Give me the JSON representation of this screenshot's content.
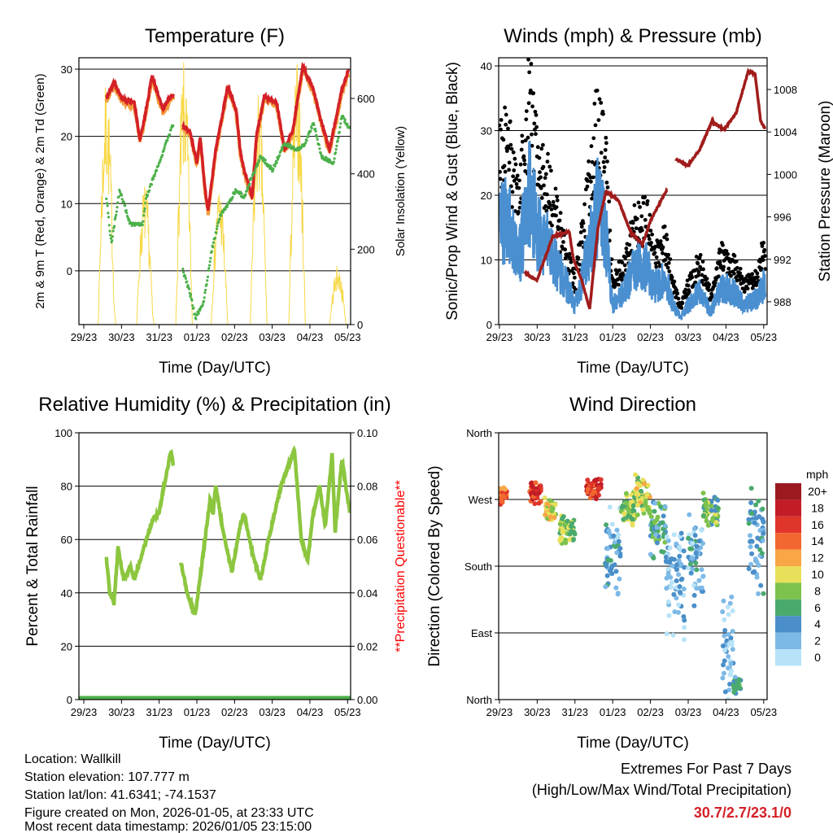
{
  "colors": {
    "temp_2m": "#d42027",
    "temp_9m": "#f39c3c",
    "dewpoint": "#4cb04a",
    "solar": "#f7d848",
    "gust": "#000000",
    "wind": "#4a8fd0",
    "pressure": "#a01c1c",
    "rh": "#8cc63f",
    "precip": "#4cb04a",
    "extremes": "#d42027",
    "questionable": "#ff0000"
  },
  "x_tick_labels": [
    "29/23",
    "30/23",
    "31/23",
    "01/23",
    "02/23",
    "03/23",
    "04/23",
    "05/23"
  ],
  "footer": {
    "location": "Location: Wallkill",
    "elevation": "Station elevation: 107.777 m",
    "latlon": "Station lat/lon: 41.6341; -74.1537",
    "created": "Figure created on Mon, 2026-01-05, at 23:33 UTC",
    "recent": "Most recent data timestamp: 2026/01/05 23:15:00",
    "extremes_title": "Extremes For Past 7 Days",
    "extremes_sub": "(High/Low/Max Wind/Total Precipitation)",
    "extremes_value": "30.7/2.7/23.1/0"
  },
  "chart_data": [
    {
      "type": "line",
      "title": "Temperature (F)",
      "xlabel": "Time (Day/UTC)",
      "ylabel": "2m & 9m T (Red, Orange) & 2m Td (Green)",
      "y2label": "Solar Insolation (Yellow)",
      "xlim": [
        -0.13,
        7.08
      ],
      "ylim": [
        -8,
        31.7
      ],
      "y2lim": [
        0,
        708
      ],
      "yticks": [
        0,
        10,
        20,
        30
      ],
      "y2ticks": [
        0,
        200,
        400,
        600
      ],
      "series": [
        {
          "name": "2m T",
          "segments": [
            [
              [
                0.6,
                25.7
              ],
              [
                0.8,
                28
              ],
              [
                1.02,
                25.5
              ],
              [
                1.34,
                25
              ],
              [
                1.49,
                19.5
              ],
              [
                1.62,
                23
              ],
              [
                1.81,
                29
              ],
              [
                2.1,
                24
              ],
              [
                2.25,
                25.5
              ],
              [
                2.38,
                26
              ]
            ],
            [
              [
                2.63,
                21.5
              ],
              [
                2.81,
                21
              ],
              [
                3.0,
                16
              ],
              [
                3.09,
                20
              ],
              [
                3.22,
                12
              ],
              [
                3.3,
                9
              ],
              [
                3.5,
                18
              ],
              [
                3.82,
                27.5
              ],
              [
                4.04,
                24
              ],
              [
                4.15,
                18
              ],
              [
                4.25,
                15
              ],
              [
                4.47,
                11
              ],
              [
                4.58,
                20
              ],
              [
                4.79,
                26
              ],
              [
                5.12,
                25
              ],
              [
                5.33,
                18
              ],
              [
                5.55,
                21
              ],
              [
                5.81,
                30.5
              ],
              [
                6.09,
                27
              ],
              [
                6.31,
                22
              ],
              [
                6.52,
                18
              ],
              [
                6.85,
                27
              ],
              [
                7.02,
                29.7
              ]
            ]
          ]
        },
        {
          "name": "2m Td",
          "segments": [
            [
              [
                0.6,
                11
              ],
              [
                0.73,
                4
              ],
              [
                0.95,
                12
              ],
              [
                1.23,
                7
              ],
              [
                1.56,
                7
              ],
              [
                1.66,
                11
              ],
              [
                1.99,
                16
              ],
              [
                2.31,
                21
              ],
              [
                2.38,
                22
              ]
            ],
            [
              [
                2.63,
                0
              ],
              [
                2.85,
                -4
              ],
              [
                2.96,
                -7
              ],
              [
                3.17,
                -5
              ],
              [
                3.39,
                3
              ],
              [
                3.61,
                8
              ],
              [
                4.04,
                12
              ],
              [
                4.25,
                11
              ],
              [
                4.69,
                17
              ],
              [
                5.01,
                15
              ],
              [
                5.33,
                19
              ],
              [
                5.66,
                18
              ],
              [
                5.88,
                19
              ],
              [
                6.09,
                22
              ],
              [
                6.31,
                17
              ],
              [
                6.63,
                16
              ],
              [
                6.85,
                23
              ],
              [
                7.06,
                21
              ]
            ]
          ]
        },
        {
          "name": "Solar daily peaks",
          "peaks": [
            [
              0.6,
              650
            ],
            [
              1.62,
              380
            ],
            [
              2.66,
              700
            ],
            [
              3.6,
              380
            ],
            [
              4.64,
              620
            ],
            [
              5.66,
              700
            ],
            [
              6.74,
              160
            ]
          ]
        }
      ]
    },
    {
      "type": "line",
      "title": "Winds (mph) & Pressure (mb)",
      "xlabel": "Time (Day/UTC)",
      "ylabel": "Sonic/Prop Wind & Gust (Blue, Black)",
      "y2label": "Station Pressure (Maroon)",
      "xlim": [
        -0.02,
        7.09
      ],
      "ylim": [
        0,
        41.26
      ],
      "y2lim": [
        985.85,
        1010.99
      ],
      "yticks": [
        0,
        10,
        20,
        30,
        40
      ],
      "y2ticks": [
        988,
        992,
        996,
        1000,
        1004,
        1008
      ],
      "series": [
        {
          "name": "Wind",
          "points": [
            [
              0,
              15
            ],
            [
              0.2,
              17
            ],
            [
              0.5,
              10
            ],
            [
              0.8,
              20
            ],
            [
              1.0,
              15
            ],
            [
              1.3,
              12
            ],
            [
              1.6,
              8
            ],
            [
              1.8,
              6
            ],
            [
              2.0,
              3
            ],
            [
              2.3,
              10
            ],
            [
              2.6,
              18
            ],
            [
              2.8,
              15
            ],
            [
              3.0,
              3
            ],
            [
              3.3,
              5
            ],
            [
              3.6,
              9
            ],
            [
              3.9,
              9
            ],
            [
              4.1,
              6
            ],
            [
              4.4,
              7
            ],
            [
              4.6,
              3
            ],
            [
              4.8,
              1
            ],
            [
              5.0,
              3
            ],
            [
              5.3,
              5
            ],
            [
              5.6,
              2
            ],
            [
              5.9,
              6
            ],
            [
              6.2,
              5
            ],
            [
              6.5,
              3
            ],
            [
              6.8,
              4
            ],
            [
              7.0,
              6
            ]
          ]
        },
        {
          "name": "Pressure",
          "segments": [
            [
              [
                0.67,
                990.8
              ],
              [
                0.99,
                990
              ],
              [
                1.42,
                994.2
              ],
              [
                1.85,
                994.6
              ],
              [
                1.96,
                992
              ],
              [
                2.18,
                990
              ],
              [
                2.39,
                987.3
              ],
              [
                2.61,
                995
              ],
              [
                2.82,
                998.4
              ],
              [
                3.15,
                997.6
              ],
              [
                3.47,
                994.6
              ],
              [
                3.79,
                993.4
              ],
              [
                4.01,
                995.7
              ],
              [
                4.44,
                998.6
              ]
            ],
            [
              [
                4.66,
                1001.5
              ],
              [
                4.98,
                1000.8
              ],
              [
                5.3,
                1002.3
              ],
              [
                5.63,
                1005
              ],
              [
                5.95,
                1004.2
              ],
              [
                6.27,
                1005.8
              ],
              [
                6.59,
                1009.7
              ],
              [
                6.77,
                1009.5
              ],
              [
                6.92,
                1005
              ],
              [
                7.03,
                1004.3
              ]
            ]
          ]
        }
      ]
    },
    {
      "type": "line",
      "title": "Relative Humidity (%) & Precipitation (in)",
      "xlabel": "Time (Day/UTC)",
      "ylabel": "Percent & Total Rainfall",
      "y2label": "**Precipitation Questionable**",
      "xlim": [
        -0.13,
        7.08
      ],
      "ylim": [
        0,
        100
      ],
      "y2lim": [
        0,
        0.1
      ],
      "yticks": [
        0,
        20,
        40,
        60,
        80,
        100
      ],
      "y2ticks": [
        "0.00",
        "0.02",
        "0.04",
        "0.06",
        "0.08",
        "0.10"
      ],
      "series": [
        {
          "name": "RH",
          "segments": [
            [
              [
                0.6,
                53
              ],
              [
                0.69,
                40
              ],
              [
                0.8,
                36
              ],
              [
                0.91,
                57
              ],
              [
                1.06,
                45
              ],
              [
                1.23,
                50
              ],
              [
                1.34,
                45
              ],
              [
                1.56,
                55
              ],
              [
                1.66,
                60
              ],
              [
                1.84,
                68
              ],
              [
                1.99,
                70
              ],
              [
                2.31,
                93
              ],
              [
                2.38,
                88
              ]
            ],
            [
              [
                2.57,
                52
              ],
              [
                2.74,
                40
              ],
              [
                2.96,
                32
              ],
              [
                3.17,
                55
              ],
              [
                3.35,
                75
              ],
              [
                3.43,
                70
              ],
              [
                3.5,
                80
              ],
              [
                3.71,
                62
              ],
              [
                3.93,
                48
              ],
              [
                4.15,
                65
              ],
              [
                4.25,
                70
              ],
              [
                4.47,
                55
              ],
              [
                4.69,
                45
              ],
              [
                4.9,
                60
              ],
              [
                5.23,
                80
              ],
              [
                5.59,
                94
              ],
              [
                5.77,
                60
              ],
              [
                5.94,
                52
              ],
              [
                6.09,
                70
              ],
              [
                6.26,
                80
              ],
              [
                6.41,
                65
              ],
              [
                6.59,
                92
              ],
              [
                6.67,
                63
              ],
              [
                6.85,
                90
              ],
              [
                7.06,
                70
              ]
            ]
          ]
        },
        {
          "name": "Precipitation",
          "value": 0
        }
      ]
    },
    {
      "type": "scatter",
      "title": "Wind Direction",
      "xlabel": "Time (Day/UTC)",
      "ylabel": "Direction (Colored By Speed)",
      "xlim": [
        -0.02,
        7.09
      ],
      "ylim": [
        0,
        360
      ],
      "yticks": [
        [
          0,
          "North"
        ],
        [
          90,
          "East"
        ],
        [
          180,
          "South"
        ],
        [
          270,
          "West"
        ],
        [
          360,
          "North"
        ]
      ],
      "legend": {
        "title": "mph",
        "labels": [
          "0",
          "2",
          "4",
          "6",
          "8",
          "10",
          "12",
          "14",
          "16",
          "18",
          "20+"
        ],
        "colors": [
          "#b7e3f8",
          "#7db9e6",
          "#4a8fc9",
          "#4aaa6e",
          "#7dc24c",
          "#e8e05a",
          "#f8a646",
          "#f2672f",
          "#e0352b",
          "#c21d27",
          "#9a1a1f"
        ]
      },
      "clusters": [
        {
          "days": [
            0,
            0.2
          ],
          "dir": 275,
          "spread": 15,
          "speed": 14
        },
        {
          "days": [
            0.8,
            1.1
          ],
          "dir": 280,
          "spread": 18,
          "speed": 16
        },
        {
          "days": [
            1.2,
            1.5
          ],
          "dir": 255,
          "spread": 20,
          "speed": 10
        },
        {
          "days": [
            1.6,
            2.0
          ],
          "dir": 228,
          "spread": 22,
          "speed": 8
        },
        {
          "days": [
            2.3,
            2.7
          ],
          "dir": 285,
          "spread": 15,
          "speed": 17
        },
        {
          "days": [
            2.8,
            3.2
          ],
          "dir": 200,
          "spread": 70,
          "speed": 3
        },
        {
          "days": [
            3.2,
            3.6
          ],
          "dir": 258,
          "spread": 25,
          "speed": 8
        },
        {
          "days": [
            3.6,
            4.0
          ],
          "dir": 275,
          "spread": 30,
          "speed": 9
        },
        {
          "days": [
            4.0,
            4.4
          ],
          "dir": 230,
          "spread": 45,
          "speed": 5
        },
        {
          "days": [
            4.4,
            4.9
          ],
          "dir": 160,
          "spread": 80,
          "speed": 2
        },
        {
          "days": [
            5.0,
            5.4
          ],
          "dir": 190,
          "spread": 70,
          "speed": 3
        },
        {
          "days": [
            5.4,
            5.8
          ],
          "dir": 255,
          "spread": 25,
          "speed": 7
        },
        {
          "days": [
            5.9,
            6.2
          ],
          "dir": 70,
          "spread": 90,
          "speed": 2
        },
        {
          "days": [
            6.2,
            6.4
          ],
          "dir": 20,
          "spread": 15,
          "speed": 5
        },
        {
          "days": [
            6.6,
            7.0
          ],
          "dir": 215,
          "spread": 75,
          "speed": 4
        }
      ]
    }
  ]
}
